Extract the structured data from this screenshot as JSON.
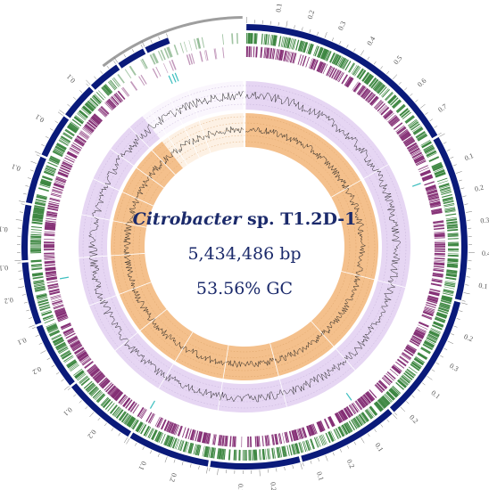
{
  "center": {
    "organism_italic": "Citrobacter",
    "organism_rest": " sp. T1.2D-1",
    "genome_size": "5,434,486 bp",
    "gc_content": "53.56% GC"
  },
  "colors": {
    "contig_ring": "#0a1a7a",
    "cds_forward": "#2e7d32",
    "cds_reverse": "#7b1f6a",
    "gc_skew_band": "#e6d6f3",
    "gc_content_band": "#f4c08c",
    "trna": "#40c0c0",
    "ruler": "#9e9e9e"
  },
  "ruler": {
    "first_contig_ticks": [
      "0.1",
      "0.2",
      "0.3",
      "0.4",
      "0.5",
      "0.6",
      "0.7"
    ],
    "contig_ticks": [
      "0.1",
      "0.2",
      "0.3",
      "0.4",
      "0.1",
      "0.2",
      "0.3",
      "0.1",
      "0.2",
      "0.1",
      "0.2",
      "0.1",
      "0.2",
      "0.1",
      "0.2",
      "0.1",
      "0.2",
      "0.1",
      "0.2",
      "0.1",
      "0.2",
      "0.1",
      "0.1",
      "0.1",
      "0.1",
      "0.1"
    ]
  }
}
